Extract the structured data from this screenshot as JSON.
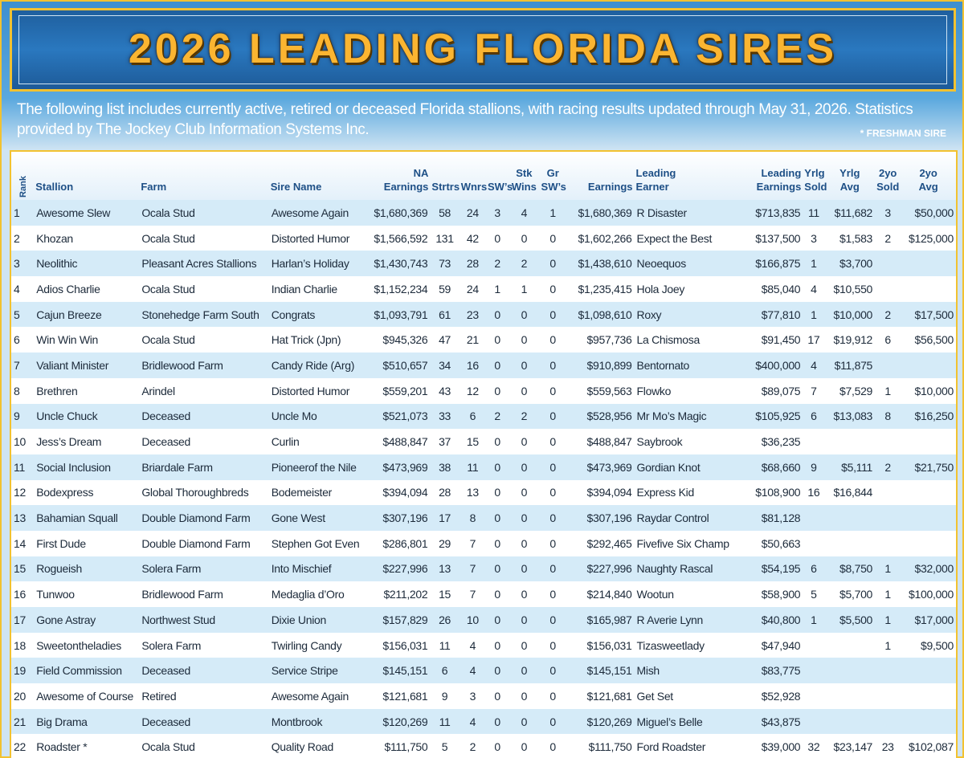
{
  "header": {
    "title": "2026 LEADING FLORIDA SIRES"
  },
  "intro": {
    "text": "The following list includes currently active, retired or deceased Florida stallions, with racing results updated through May 31, 2026. Statistics provided by The Jockey Club Information Systems Inc.",
    "note": "* FRESHMAN SIRE"
  },
  "table": {
    "columns": [
      [
        "Rank"
      ],
      [
        "Stallion"
      ],
      [
        "Farm"
      ],
      [
        "Sire Name"
      ],
      [
        "NA",
        "Earnings"
      ],
      [
        "Strtrs"
      ],
      [
        "Wnrs"
      ],
      [
        "SW’s"
      ],
      [
        "Stk",
        "Wins"
      ],
      [
        "Gr",
        "SW’s"
      ],
      [
        "Earnings"
      ],
      [
        "Leading",
        "Earner"
      ],
      [
        "Leading",
        "Earnings"
      ],
      [
        "Yrlg",
        "Sold"
      ],
      [
        "Yrlg",
        "Avg"
      ],
      [
        "2yo",
        "Sold"
      ],
      [
        "2yo",
        "Avg"
      ]
    ],
    "rows": [
      [
        "1",
        "Awesome Slew",
        "Ocala Stud",
        "Awesome Again",
        "$1,680,369",
        "58",
        "24",
        "3",
        "4",
        "1",
        "$1,680,369",
        "R Disaster",
        "$713,835",
        "11",
        "$11,682",
        "3",
        "$50,000"
      ],
      [
        "2",
        "Khozan",
        "Ocala Stud",
        "Distorted Humor",
        "$1,566,592",
        "131",
        "42",
        "0",
        "0",
        "0",
        "$1,602,266",
        "Expect the Best",
        "$137,500",
        "3",
        "$1,583",
        "2",
        "$125,000"
      ],
      [
        "3",
        "Neolithic",
        "Pleasant Acres Stallions",
        "Harlan’s Holiday",
        "$1,430,743",
        "73",
        "28",
        "2",
        "2",
        "0",
        "$1,438,610",
        "Neoequos",
        "$166,875",
        "1",
        "$3,700",
        null,
        null
      ],
      [
        "4",
        "Adios Charlie",
        "Ocala Stud",
        "Indian Charlie",
        "$1,152,234",
        "59",
        "24",
        "1",
        "1",
        "0",
        "$1,235,415",
        "Hola Joey",
        "$85,040",
        "4",
        "$10,550",
        null,
        null
      ],
      [
        "5",
        "Cajun Breeze",
        "Stonehedge Farm South",
        "Congrats",
        "$1,093,791",
        "61",
        "23",
        "0",
        "0",
        "0",
        "$1,098,610",
        "Roxy",
        "$77,810",
        "1",
        "$10,000",
        "2",
        "$17,500"
      ],
      [
        "6",
        "Win Win Win",
        "Ocala Stud",
        "Hat Trick (Jpn)",
        "$945,326",
        "47",
        "21",
        "0",
        "0",
        "0",
        "$957,736",
        "La Chismosa",
        "$91,450",
        "17",
        "$19,912",
        "6",
        "$56,500"
      ],
      [
        "7",
        "Valiant Minister",
        "Bridlewood Farm",
        "Candy Ride (Arg)",
        "$510,657",
        "34",
        "16",
        "0",
        "0",
        "0",
        "$910,899",
        "Bentornato",
        "$400,000",
        "4",
        "$11,875",
        null,
        null
      ],
      [
        "8",
        "Brethren",
        "Arindel",
        "Distorted Humor",
        "$559,201",
        "43",
        "12",
        "0",
        "0",
        "0",
        "$559,563",
        "Flowko",
        "$89,075",
        "7",
        "$7,529",
        "1",
        "$10,000"
      ],
      [
        "9",
        "Uncle Chuck",
        "Deceased",
        "Uncle Mo",
        "$521,073",
        "33",
        "6",
        "2",
        "2",
        "0",
        "$528,956",
        "Mr Mo’s Magic",
        "$105,925",
        "6",
        "$13,083",
        "8",
        "$16,250"
      ],
      [
        "10",
        "Jess’s Dream",
        "Deceased",
        "Curlin",
        "$488,847",
        "37",
        "15",
        "0",
        "0",
        "0",
        "$488,847",
        "Saybrook",
        "$36,235",
        null,
        null,
        null,
        null
      ],
      [
        "11",
        "Social Inclusion",
        "Briardale Farm",
        "Pioneerof the Nile",
        "$473,969",
        "38",
        "11",
        "0",
        "0",
        "0",
        "$473,969",
        "Gordian Knot",
        "$68,660",
        "9",
        "$5,111",
        "2",
        "$21,750"
      ],
      [
        "12",
        "Bodexpress",
        "Global Thoroughbreds",
        "Bodemeister",
        "$394,094",
        "28",
        "13",
        "0",
        "0",
        "0",
        "$394,094",
        "Express Kid",
        "$108,900",
        "16",
        "$16,844",
        null,
        null
      ],
      [
        "13",
        "Bahamian Squall",
        "Double Diamond Farm",
        "Gone West",
        "$307,196",
        "17",
        "8",
        "0",
        "0",
        "0",
        "$307,196",
        "Raydar Control",
        "$81,128",
        null,
        null,
        null,
        null
      ],
      [
        "14",
        "First Dude",
        "Double Diamond Farm",
        "Stephen Got Even",
        "$286,801",
        "29",
        "7",
        "0",
        "0",
        "0",
        "$292,465",
        "Fivefive Six Champ",
        "$50,663",
        null,
        null,
        null,
        null
      ],
      [
        "15",
        "Rogueish",
        "Solera Farm",
        "Into Mischief",
        "$227,996",
        "13",
        "7",
        "0",
        "0",
        "0",
        "$227,996",
        "Naughty Rascal",
        "$54,195",
        "6",
        "$8,750",
        "1",
        "$32,000"
      ],
      [
        "16",
        "Tunwoo",
        "Bridlewood Farm",
        "Medaglia d’Oro",
        "$211,202",
        "15",
        "7",
        "0",
        "0",
        "0",
        "$214,840",
        "Wootun",
        "$58,900",
        "5",
        "$5,700",
        "1",
        "$100,000"
      ],
      [
        "17",
        "Gone Astray",
        "Northwest Stud",
        "Dixie Union",
        "$157,829",
        "26",
        "10",
        "0",
        "0",
        "0",
        "$165,987",
        "R Averie Lynn",
        "$40,800",
        "1",
        "$5,500",
        "1",
        "$17,000"
      ],
      [
        "18",
        "Sweetontheladies",
        "Solera Farm",
        "Twirling Candy",
        "$156,031",
        "11",
        "4",
        "0",
        "0",
        "0",
        "$156,031",
        "Tizasweetlady",
        "$47,940",
        null,
        null,
        "1",
        "$9,500"
      ],
      [
        "19",
        "Field Commission",
        "Deceased",
        "Service Stripe",
        "$145,151",
        "6",
        "4",
        "0",
        "0",
        "0",
        "$145,151",
        "Mish",
        "$83,775",
        null,
        null,
        null,
        null
      ],
      [
        "20",
        "Awesome of Course",
        "Retired",
        "Awesome Again",
        "$121,681",
        "9",
        "3",
        "0",
        "0",
        "0",
        "$121,681",
        "Get Set",
        "$52,928",
        null,
        null,
        null,
        null
      ],
      [
        "21",
        "Big Drama",
        "Deceased",
        "Montbrook",
        "$120,269",
        "11",
        "4",
        "0",
        "0",
        "0",
        "$120,269",
        "Miguel’s Belle",
        "$43,875",
        null,
        null,
        null,
        null
      ],
      [
        "22",
        "Roadster *",
        "Ocala Stud",
        "Quality Road",
        "$111,750",
        "5",
        "2",
        "0",
        "0",
        "0",
        "$111,750",
        "Ford Roadster",
        "$39,000",
        "32",
        "$23,147",
        "23",
        "$102,087"
      ]
    ]
  }
}
